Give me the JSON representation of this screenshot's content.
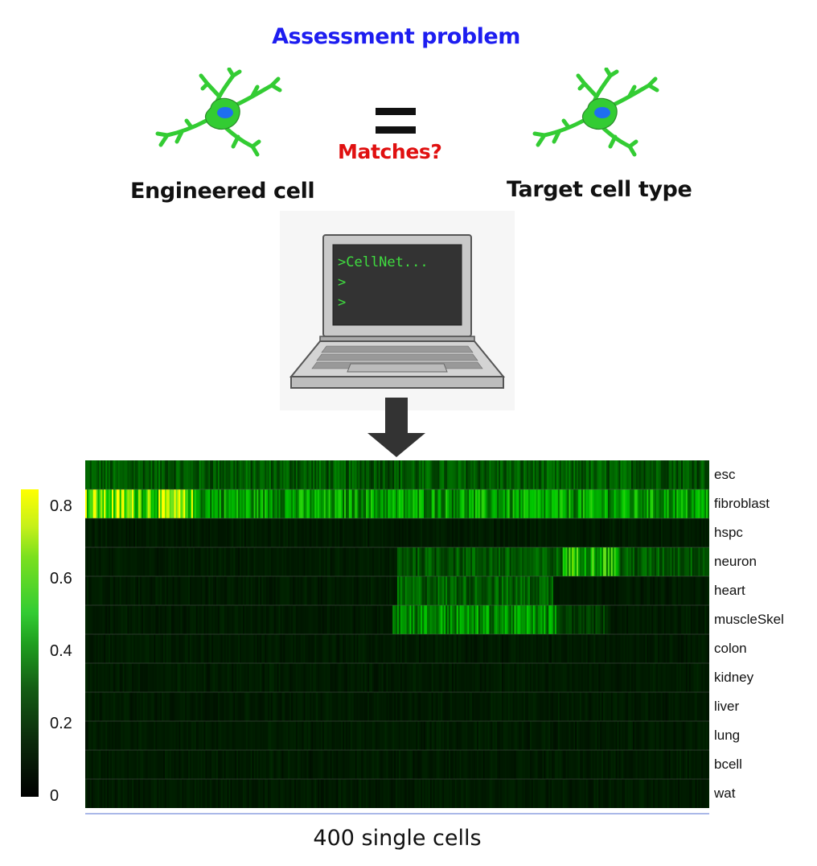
{
  "title": "Assessment problem",
  "left_caption": "Engineered cell",
  "right_caption": "Target cell type",
  "match_label": "Matches?",
  "terminal_lines": [
    ">CellNet...",
    ">",
    ">"
  ],
  "colors": {
    "title": "#1d1df0",
    "match": "#e01010",
    "neuron": "#33cc33",
    "nucleus": "#1e6ff0"
  },
  "icons": {
    "left_cell": "neuron-icon",
    "right_cell": "neuron-icon",
    "computer": "laptop-icon",
    "arrow": "down-arrow-icon"
  },
  "chart_data": {
    "type": "heatmap",
    "xlabel": "400 single cells",
    "rows": [
      "esc",
      "fibroblast",
      "hspc",
      "neuron",
      "heart",
      "muscleSkel",
      "colon",
      "kidney",
      "liver",
      "lung",
      "bcell",
      "wat"
    ],
    "n_columns": 400,
    "colorbar_ticks": [
      "0.8",
      "0.6",
      "0.4",
      "0.2",
      "0"
    ],
    "colorbar_range": [
      0,
      0.85
    ],
    "colormap": [
      "#000000",
      "#1a7a1a",
      "#33cc33",
      "#ffff00"
    ],
    "blocks": [
      {
        "row": "esc",
        "start": 0,
        "end": 400,
        "level": 0.2
      },
      {
        "row": "fibroblast",
        "start": 0,
        "end": 70,
        "level": 0.75
      },
      {
        "row": "fibroblast",
        "start": 70,
        "end": 400,
        "level": 0.4
      },
      {
        "row": "neuron",
        "start": 200,
        "end": 400,
        "level": 0.2
      },
      {
        "row": "neuron",
        "start": 306,
        "end": 342,
        "level": 0.55
      },
      {
        "row": "heart",
        "start": 200,
        "end": 300,
        "level": 0.22
      },
      {
        "row": "muscleSkel",
        "start": 197,
        "end": 302,
        "level": 0.35
      },
      {
        "row": "muscleSkel",
        "start": 302,
        "end": 335,
        "level": 0.12
      }
    ]
  }
}
